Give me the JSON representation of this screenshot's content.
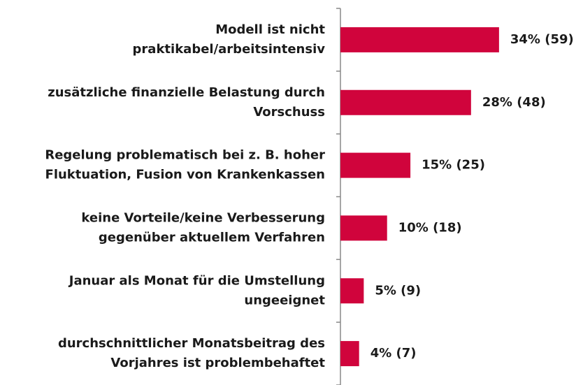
{
  "chart_data": {
    "type": "barh",
    "categories": [
      "Modell ist nicht\npraktikabel/arbeitsintensiv",
      "zusätzliche finanzielle Belastung durch\nVorschuss",
      "Regelung problematisch bei z. B. hoher\nFluktuation, Fusion von Krankenkassen",
      "keine Vorteile/keine Verbesserung\ngegenüber aktuellem Verfahren",
      "Januar als Monat für die Umstellung\nungeeignet",
      "durchschnittlicher Monatsbeitrag des\nVorjahres ist problembehaftet"
    ],
    "values": [
      34,
      28,
      15,
      10,
      5,
      4
    ],
    "value_labels": [
      "34% (59)",
      "28% (48)",
      "15% (25)",
      "10% (18)",
      "5% (9)",
      "4% (7)"
    ],
    "color": "#d0043c",
    "xlim": [
      0,
      52
    ]
  }
}
